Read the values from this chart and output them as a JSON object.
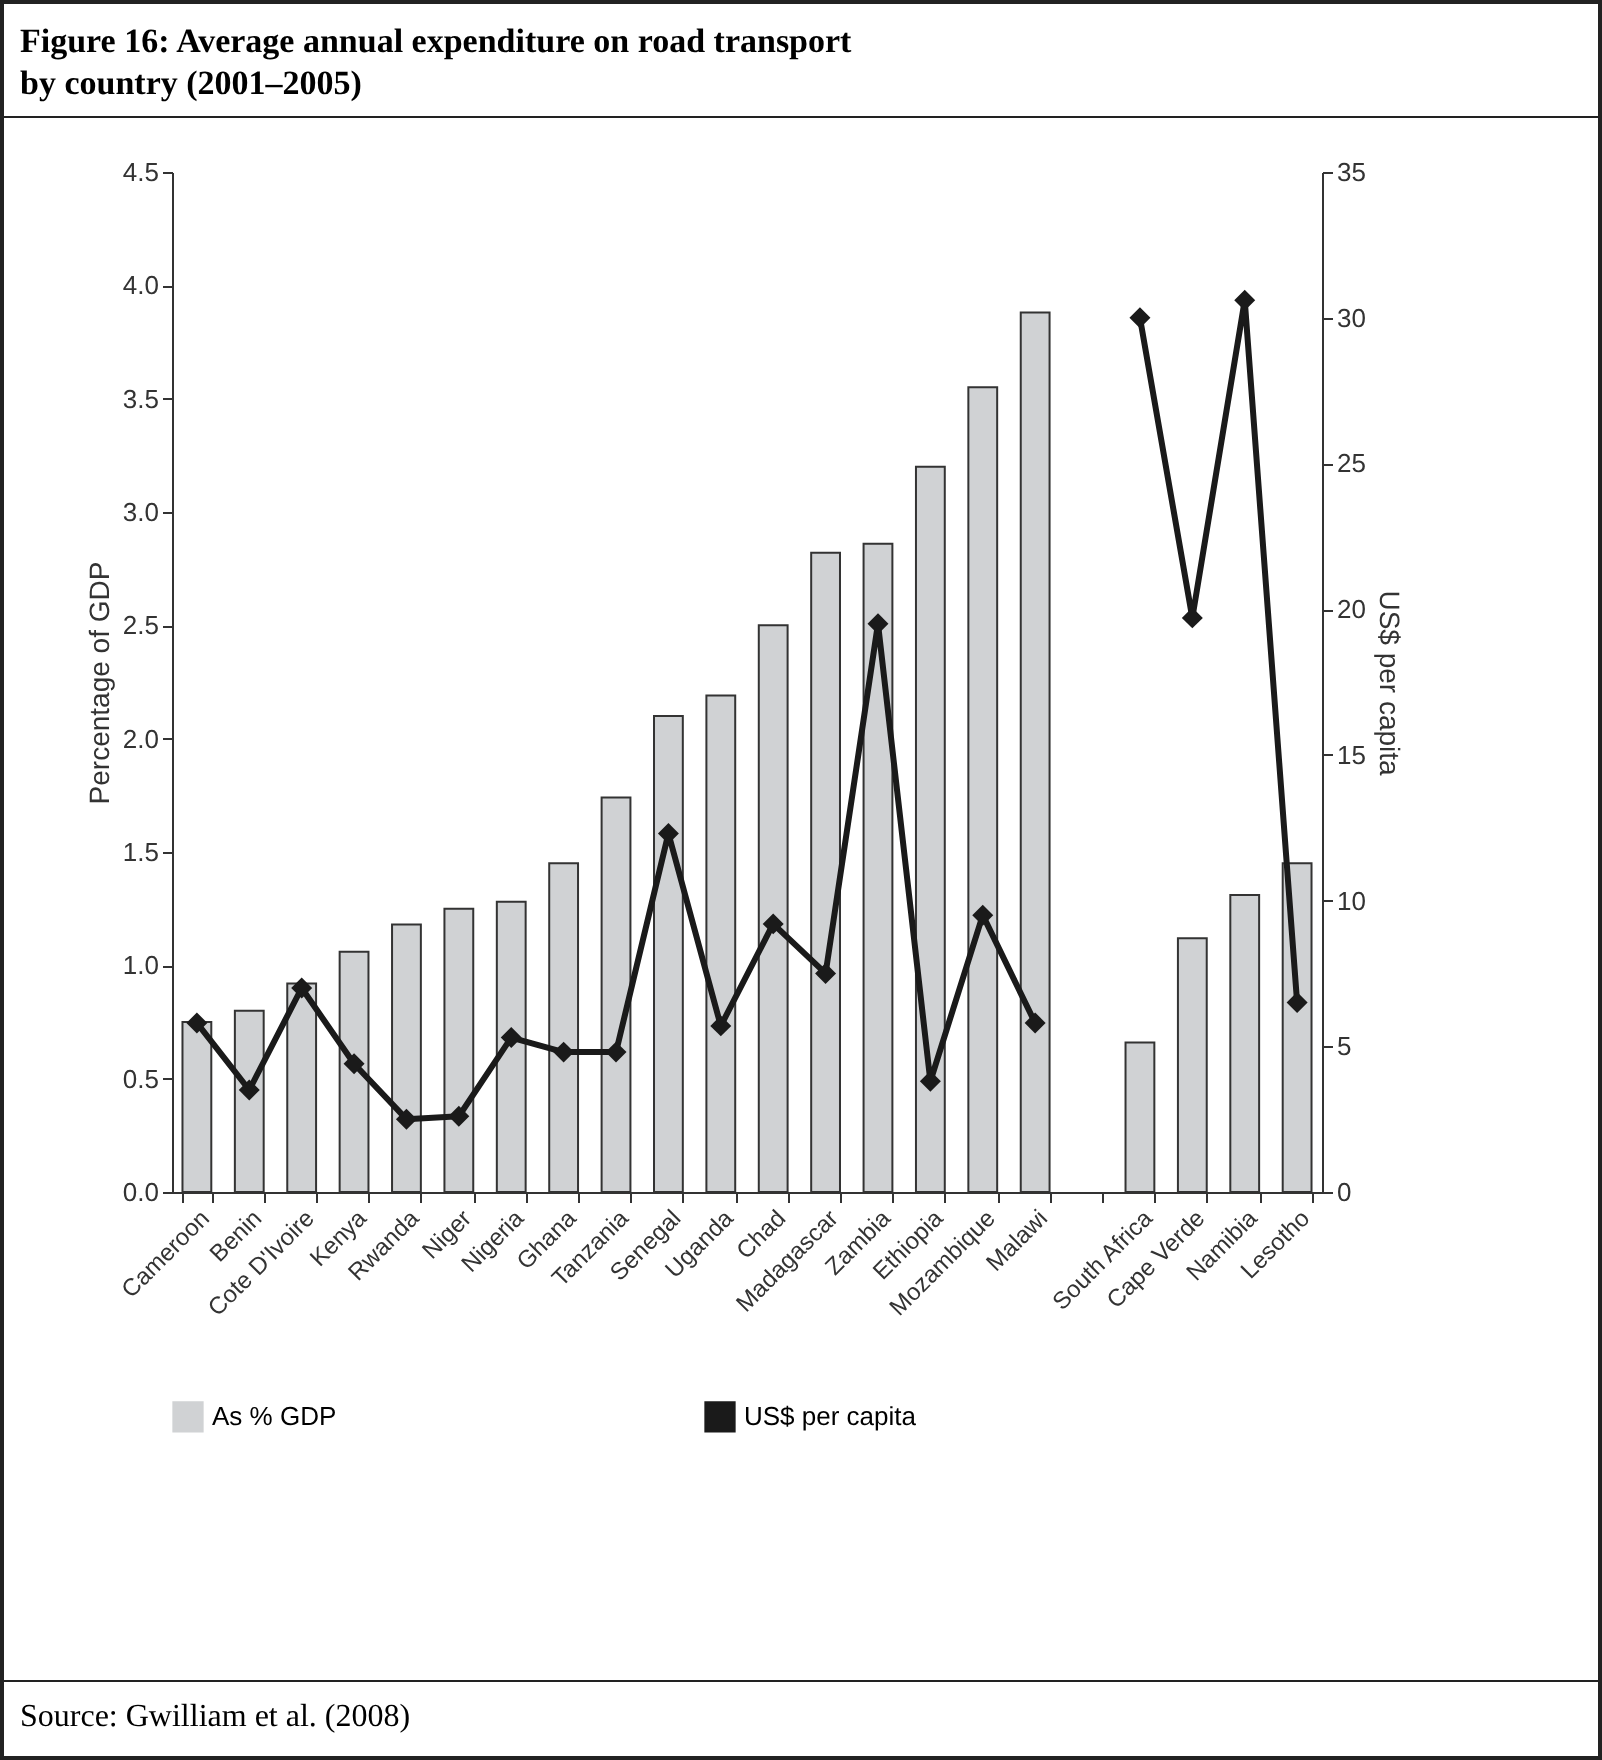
{
  "chart_data": {
    "type": "bar",
    "title": "Figure 16: Average annual expenditure on road transport by country (2001–2005)",
    "annotations": [
      "Source: Gwilliam et al. (2008)"
    ],
    "categories": [
      "Cameroon",
      "Benin",
      "Cote D'Ivoire",
      "Kenya",
      "Rwanda",
      "Niger",
      "Nigeria",
      "Ghana",
      "Tanzania",
      "Senegal",
      "Uganda",
      "Chad",
      "Madagascar",
      "Zambia",
      "Ethiopia",
      "Mozambique",
      "Malawi",
      null,
      "South Africa",
      "Cape Verde",
      "Namibia",
      "Lesotho"
    ],
    "series": [
      {
        "name": "As % GDP",
        "color": "#d0d2d4",
        "values": [
          0.75,
          0.8,
          0.92,
          1.06,
          1.18,
          1.25,
          1.28,
          1.45,
          1.74,
          2.1,
          2.19,
          2.5,
          2.82,
          2.86,
          3.2,
          3.55,
          3.88,
          null,
          0.66,
          1.12,
          1.31,
          1.45
        ]
      },
      {
        "name": "US$ per capita",
        "type": "line",
        "axis": "y2",
        "color": "#1a1a1a",
        "marker": "diamond",
        "values": [
          5.8,
          3.5,
          7.0,
          4.4,
          2.5,
          2.6,
          5.3,
          4.8,
          4.8,
          12.3,
          5.7,
          9.2,
          7.5,
          19.5,
          3.8,
          9.5,
          5.8,
          null,
          30,
          19.7,
          30.6,
          6.5
        ]
      }
    ],
    "ylabel": "Percentage of GDP",
    "y2label": "US$ per capita",
    "ylim": [
      0,
      4.5
    ],
    "yticks": [
      {
        "value": 0,
        "label": "0.0"
      },
      {
        "value": 0.5,
        "label": "0.5"
      },
      {
        "value": 1,
        "label": "1.0"
      },
      {
        "value": 1.5,
        "label": "1.5"
      },
      {
        "value": 2,
        "label": "2.0"
      },
      {
        "value": 2.5,
        "label": "2.5"
      },
      {
        "value": 3,
        "label": "3.0"
      },
      {
        "value": 3.5,
        "label": "3.5"
      },
      {
        "value": 4,
        "label": "4.0"
      },
      {
        "value": 4.5,
        "label": "4.5"
      }
    ],
    "y2lim": [
      0,
      35
    ],
    "y2ticks": [
      0,
      5,
      10,
      15,
      20,
      25,
      30,
      35
    ],
    "legend": "bottom",
    "grid": false
  }
}
